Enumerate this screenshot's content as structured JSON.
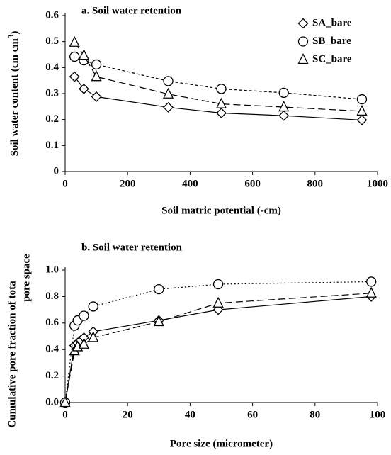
{
  "chart_data": [
    {
      "type": "line",
      "title": "a. Soil water retention",
      "xlabel": "Soil matric potential (-cm)",
      "ylabel": [
        "Soil water content (cm cm",
        "3",
        ")"
      ],
      "xlim": [
        0,
        1000
      ],
      "xticks": [
        0,
        200,
        400,
        600,
        800,
        1000
      ],
      "ylim": [
        0,
        0.6
      ],
      "yticks": [
        0,
        0.1,
        0.2,
        0.3,
        0.4,
        0.5,
        0.6
      ],
      "legend": "top-right",
      "series": [
        {
          "name": "SA_bare",
          "color": "#000000",
          "marker": "diamond",
          "dash": "solid",
          "x": [
            30,
            60,
            100,
            330,
            500,
            700,
            950
          ],
          "values": [
            0.365,
            0.318,
            0.288,
            0.247,
            0.225,
            0.215,
            0.198
          ]
        },
        {
          "name": "SB_bare",
          "color": "#000000",
          "marker": "circle",
          "dash": "short-dash",
          "x": [
            30,
            60,
            100,
            330,
            500,
            700,
            950
          ],
          "values": [
            0.442,
            0.428,
            0.412,
            0.348,
            0.318,
            0.303,
            0.278
          ]
        },
        {
          "name": "SC_bare",
          "color": "#000000",
          "marker": "triangle",
          "dash": "long-dash",
          "x": [
            30,
            60,
            100,
            330,
            500,
            700,
            950
          ],
          "values": [
            0.497,
            0.447,
            0.365,
            0.298,
            0.26,
            0.248,
            0.232
          ]
        }
      ]
    },
    {
      "type": "line",
      "title": "b. Soil water retention",
      "xlabel": "Pore size (micrometer)",
      "ylabel": [
        "Cumulative pore fraction of tota",
        "pore space"
      ],
      "xlim": [
        0,
        100
      ],
      "xticks": [
        0,
        20,
        40,
        60,
        80,
        100
      ],
      "ylim": [
        0,
        1.0
      ],
      "yticks": [
        {
          "value": 0,
          "label": "0.0"
        },
        0.2,
        0.4,
        0.6,
        0.8,
        {
          "value": 1.0,
          "label": "1.0"
        }
      ],
      "series": [
        {
          "color": "#000000",
          "marker": "diamond",
          "dash": "solid",
          "x": [
            0,
            3,
            4,
            5,
            6,
            9,
            30,
            49,
            98
          ],
          "values": [
            0,
            0.43,
            0.45,
            0.47,
            0.49,
            0.535,
            0.62,
            0.7,
            0.8
          ]
        },
        {
          "color": "#000000",
          "marker": "circle",
          "dash": "dotted",
          "x": [
            0,
            3,
            4,
            6,
            9,
            30,
            49,
            98
          ],
          "values": [
            0,
            0.58,
            0.62,
            0.655,
            0.725,
            0.855,
            0.893,
            0.912
          ]
        },
        {
          "color": "#000000",
          "marker": "triangle",
          "dash": "long-dash",
          "x": [
            0,
            3,
            4,
            6,
            9,
            30,
            49,
            98
          ],
          "values": [
            0,
            0.39,
            0.42,
            0.44,
            0.49,
            0.61,
            0.75,
            0.825
          ]
        }
      ]
    }
  ]
}
